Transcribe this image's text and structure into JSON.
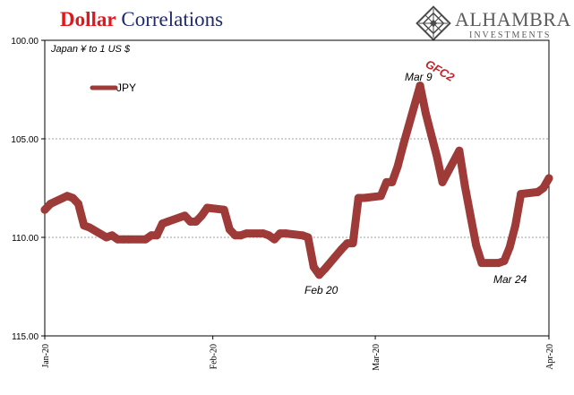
{
  "header": {
    "title_part1": "Dollar",
    "title_part2": " Correlations"
  },
  "logo": {
    "wordmark": "ALHAMBRA",
    "subtitle": "INVESTMENTS"
  },
  "chart_data": {
    "type": "line",
    "subtitle": "Japan ¥ to 1 US $",
    "y_axis": {
      "min": 100,
      "max": 115,
      "inverted": true,
      "ticks": [
        100,
        105,
        110,
        115
      ],
      "tick_labels": [
        "100.00",
        "105.00",
        "110.00",
        "115.00"
      ]
    },
    "x_axis": {
      "start": "2020-01-02",
      "end": "2020-04-01",
      "ticks": [
        "2020-01-02",
        "2020-02-01",
        "2020-03-01",
        "2020-04-01"
      ],
      "tick_labels": [
        "Jan-20",
        "Feb-20",
        "Mar-20",
        "Apr-20"
      ]
    },
    "grid": {
      "horizontal": true,
      "style": "dashed"
    },
    "legend": {
      "position": "top-left"
    },
    "series": [
      {
        "name": "JPY",
        "color": "#9e3a38",
        "points": [
          [
            "2020-01-02",
            108.6
          ],
          [
            "2020-01-03",
            108.3
          ],
          [
            "2020-01-06",
            107.9
          ],
          [
            "2020-01-07",
            108.0
          ],
          [
            "2020-01-08",
            108.3
          ],
          [
            "2020-01-09",
            109.4
          ],
          [
            "2020-01-10",
            109.5
          ],
          [
            "2020-01-13",
            110.0
          ],
          [
            "2020-01-14",
            109.9
          ],
          [
            "2020-01-15",
            110.1
          ],
          [
            "2020-01-16",
            110.1
          ],
          [
            "2020-01-17",
            110.1
          ],
          [
            "2020-01-20",
            110.1
          ],
          [
            "2020-01-21",
            109.9
          ],
          [
            "2020-01-22",
            109.9
          ],
          [
            "2020-01-23",
            109.3
          ],
          [
            "2020-01-24",
            109.2
          ],
          [
            "2020-01-27",
            108.9
          ],
          [
            "2020-01-28",
            109.2
          ],
          [
            "2020-01-29",
            109.2
          ],
          [
            "2020-01-30",
            108.9
          ],
          [
            "2020-01-31",
            108.5
          ],
          [
            "2020-02-03",
            108.6
          ],
          [
            "2020-02-04",
            109.6
          ],
          [
            "2020-02-05",
            109.9
          ],
          [
            "2020-02-06",
            109.9
          ],
          [
            "2020-02-07",
            109.8
          ],
          [
            "2020-02-10",
            109.8
          ],
          [
            "2020-02-11",
            109.9
          ],
          [
            "2020-02-12",
            110.1
          ],
          [
            "2020-02-13",
            109.8
          ],
          [
            "2020-02-14",
            109.8
          ],
          [
            "2020-02-17",
            109.9
          ],
          [
            "2020-02-18",
            110.0
          ],
          [
            "2020-02-19",
            111.5
          ],
          [
            "2020-02-20",
            111.9
          ],
          [
            "2020-02-21",
            111.6
          ],
          [
            "2020-02-24",
            110.6
          ],
          [
            "2020-02-25",
            110.3
          ],
          [
            "2020-02-26",
            110.3
          ],
          [
            "2020-02-27",
            108.0
          ],
          [
            "2020-02-28",
            108.0
          ],
          [
            "2020-03-02",
            107.9
          ],
          [
            "2020-03-03",
            107.2
          ],
          [
            "2020-03-04",
            107.2
          ],
          [
            "2020-03-05",
            106.4
          ],
          [
            "2020-03-06",
            105.3
          ],
          [
            "2020-03-09",
            102.3
          ],
          [
            "2020-03-10",
            103.7
          ],
          [
            "2020-03-11",
            104.8
          ],
          [
            "2020-03-12",
            105.9
          ],
          [
            "2020-03-13",
            107.2
          ],
          [
            "2020-03-16",
            105.6
          ],
          [
            "2020-03-17",
            107.4
          ],
          [
            "2020-03-18",
            108.9
          ],
          [
            "2020-03-19",
            110.4
          ],
          [
            "2020-03-20",
            111.3
          ],
          [
            "2020-03-23",
            111.3
          ],
          [
            "2020-03-24",
            111.2
          ],
          [
            "2020-03-25",
            110.5
          ],
          [
            "2020-03-26",
            109.4
          ],
          [
            "2020-03-27",
            107.8
          ],
          [
            "2020-03-30",
            107.7
          ],
          [
            "2020-03-31",
            107.5
          ],
          [
            "2020-04-01",
            107.0
          ]
        ]
      }
    ],
    "annotations": [
      {
        "text": "GFC2",
        "date": "2020-03-10"
      },
      {
        "text": "Mar 9",
        "date": "2020-03-09"
      },
      {
        "text": "Feb 20",
        "date": "2020-02-20"
      },
      {
        "text": "Mar 24",
        "date": "2020-03-24"
      }
    ]
  }
}
